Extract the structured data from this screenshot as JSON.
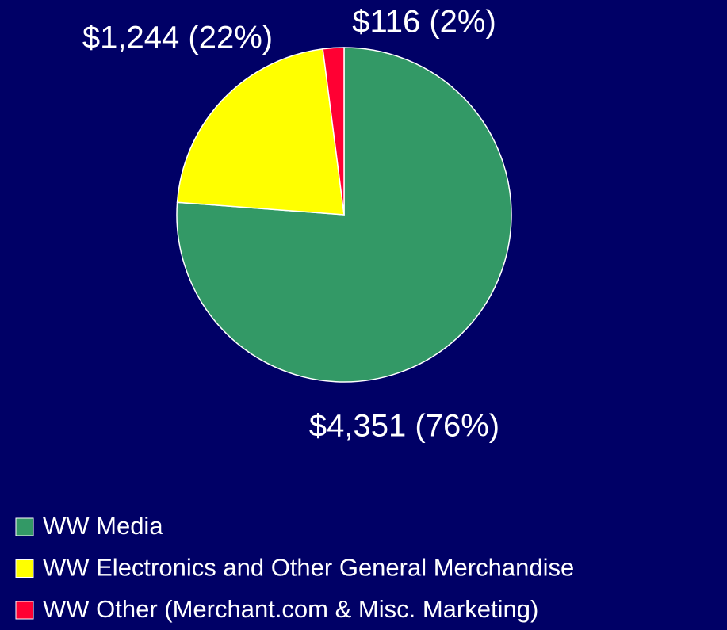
{
  "chart_data": {
    "type": "pie",
    "categories": [
      "WW Media",
      "WW Electronics and Other General Merchandise",
      "WW Other (Merchant.com & Misc. Marketing)"
    ],
    "values": [
      4351,
      1244,
      116
    ],
    "value_labels": [
      "$4,351 (76%)",
      "$1,244 (22%)",
      "$116 (2%)"
    ],
    "colors": [
      "#339966",
      "#ffff00",
      "#ff0033"
    ],
    "legend": "bottom-left"
  }
}
